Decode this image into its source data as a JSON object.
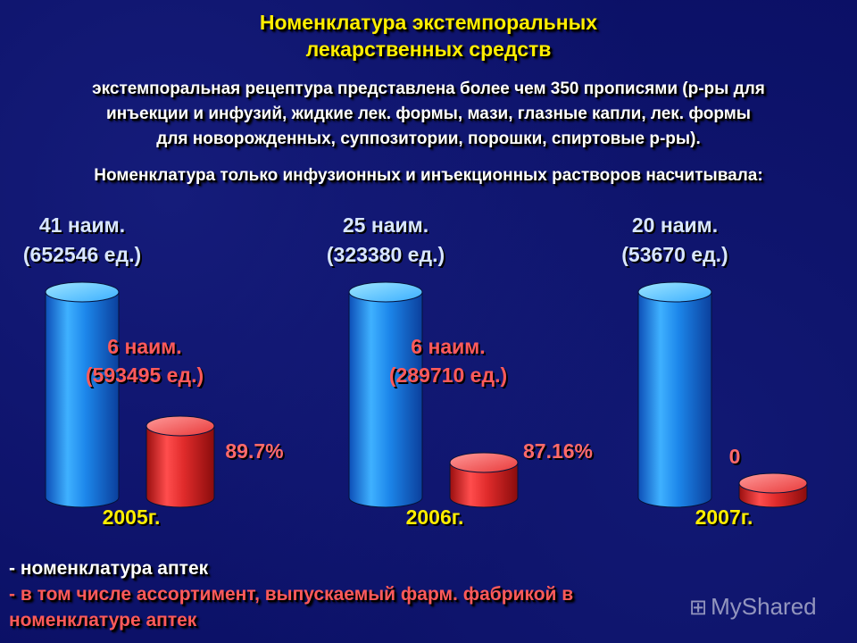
{
  "title": {
    "line1": "Номенклатура экстемпоральных",
    "line2": "лекарственных средств"
  },
  "intro": {
    "line1": "экстемпоральная рецептура представлена более чем 350 прописями (р-ры для",
    "line2": "инъекции и инфузий, жидкие лек. формы, мази, глазные капли, лек. формы",
    "line3": "для новорожденных, суппозитории, порошки, спиртовые р-ры)."
  },
  "subhead": "Номенклатура только инфузионных и инъекционных растворов насчитывала:",
  "chart_data": {
    "type": "bar",
    "categories": [
      "2005г.",
      "2006г.",
      "2007г."
    ],
    "series": [
      {
        "names": [
          41,
          25,
          20
        ],
        "units": [
          652546,
          323380,
          53670
        ],
        "labels_line1": [
          "41 наим.",
          "25 наим.",
          "20 наим."
        ],
        "labels_line2": [
          "(652546 ед.)",
          "(323380 ед.)",
          "(53670 ед.)"
        ],
        "color": "#2a8fe8"
      },
      {
        "names": [
          6,
          6,
          0
        ],
        "units": [
          593495,
          289710,
          0
        ],
        "labels_line1": [
          "6 наим.",
          "6 наим.",
          ""
        ],
        "labels_line2": [
          "(593495 ед.)",
          "(289710 ед.)",
          ""
        ],
        "percent_labels": [
          "89.7%",
          "87.16%",
          "0"
        ],
        "color": "#e02b2b"
      }
    ]
  },
  "legend": {
    "line1": "- номенклатура аптек",
    "line2": "- в том числе ассортимент, выпускаемый фарм. фабрикой в",
    "line3": "номенклатуре аптек"
  },
  "watermark": {
    "icon": "mysshare-logo-icon",
    "text": "MyShared"
  },
  "colors": {
    "background": "#0b1066",
    "title": "#ffee00",
    "blue_cylinder": "#2a8fe8",
    "red_cylinder": "#e02b2b",
    "red_text": "#ff5a5a"
  }
}
